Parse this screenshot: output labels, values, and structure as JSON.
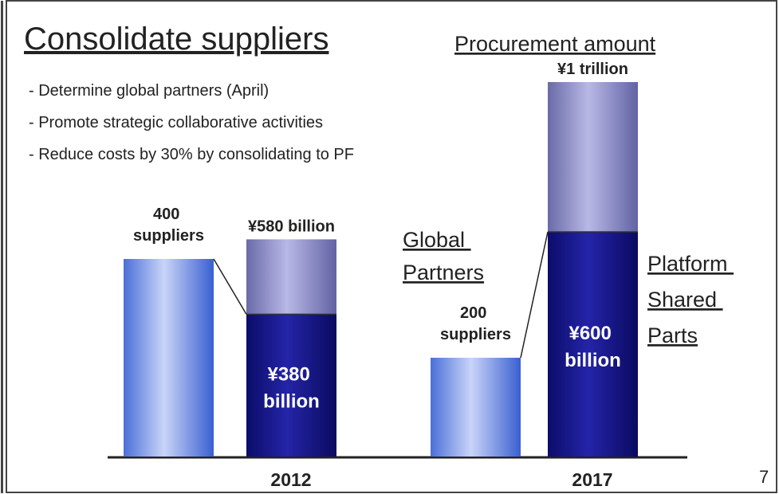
{
  "title": "Consolidate suppliers",
  "subtitle": "Procurement amount",
  "bullets": [
    "- Determine global partners (April)",
    "- Promote strategic collaborative activities",
    "- Reduce costs by 30% by consolidating to PF"
  ],
  "page_number": "7",
  "annotations": [
    "Global Partners",
    "Platform Shared Parts"
  ],
  "chart_data": {
    "type": "bar",
    "categories": [
      "2012",
      "2017"
    ],
    "series": [
      {
        "color": "#6f8fe0",
        "values": [
          400,
          200
        ],
        "value_labels": [
          "400 suppliers",
          "200 suppliers"
        ]
      },
      {
        "name": "Platform Shared Parts",
        "color": "#14148a",
        "values": [
          380,
          600
        ],
        "value_labels": [
          "¥380 billion",
          "¥600 billion"
        ]
      },
      {
        "color": "#8e8ec8",
        "values": [
          200,
          400
        ]
      }
    ],
    "totals": [
      580,
      1000
    ],
    "total_labels": [
      "¥580 billion",
      "¥1 trillion"
    ]
  }
}
